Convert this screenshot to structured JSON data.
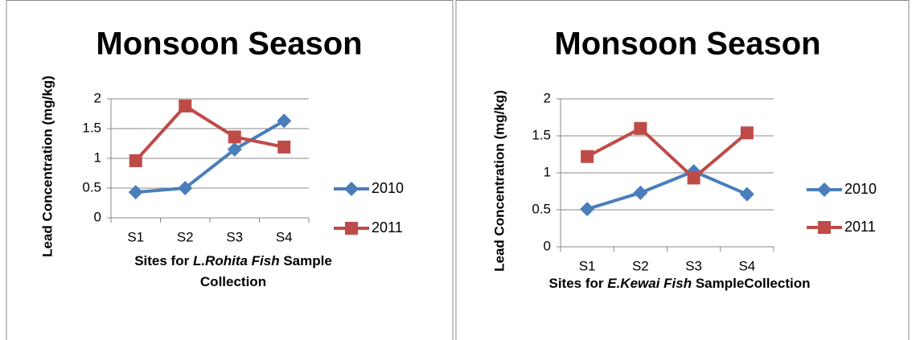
{
  "chart_data": [
    {
      "type": "line",
      "title": "Monsoon Season",
      "y_label": "Lead Concentration (mg/kg)",
      "x_label_parts": [
        "Sites for ",
        "L.Rohita Fish",
        " Sample",
        "Collection"
      ],
      "categories": [
        "S1",
        "S2",
        "S3",
        "S4"
      ],
      "series": [
        {
          "name": "2010",
          "color": "#4a7ebb",
          "marker": "diamond",
          "values": [
            0.43,
            0.5,
            1.15,
            1.63
          ]
        },
        {
          "name": "2011",
          "color": "#be4b48",
          "marker": "square",
          "values": [
            0.96,
            1.88,
            1.36,
            1.19
          ]
        }
      ],
      "ylim": [
        0,
        2
      ],
      "yticks": [
        0,
        0.5,
        1,
        1.5,
        2
      ],
      "grid": true,
      "legend": "right"
    },
    {
      "type": "line",
      "title": "Monsoon Season",
      "y_label": "Lead Concentration (mg/kg)",
      "x_label_parts": [
        "Sites for ",
        "E.Kewai Fish",
        " SampleCollection"
      ],
      "categories": [
        "S1",
        "S2",
        "S3",
        "S4"
      ],
      "series": [
        {
          "name": "2010",
          "color": "#4a7ebb",
          "marker": "diamond",
          "values": [
            0.51,
            0.73,
            1.02,
            0.71
          ]
        },
        {
          "name": "2011",
          "color": "#be4b48",
          "marker": "square",
          "values": [
            1.22,
            1.6,
            0.93,
            1.54
          ]
        }
      ],
      "ylim": [
        0,
        2
      ],
      "yticks": [
        0,
        0.5,
        1,
        1.5,
        2
      ],
      "grid": true,
      "legend": "right"
    }
  ]
}
